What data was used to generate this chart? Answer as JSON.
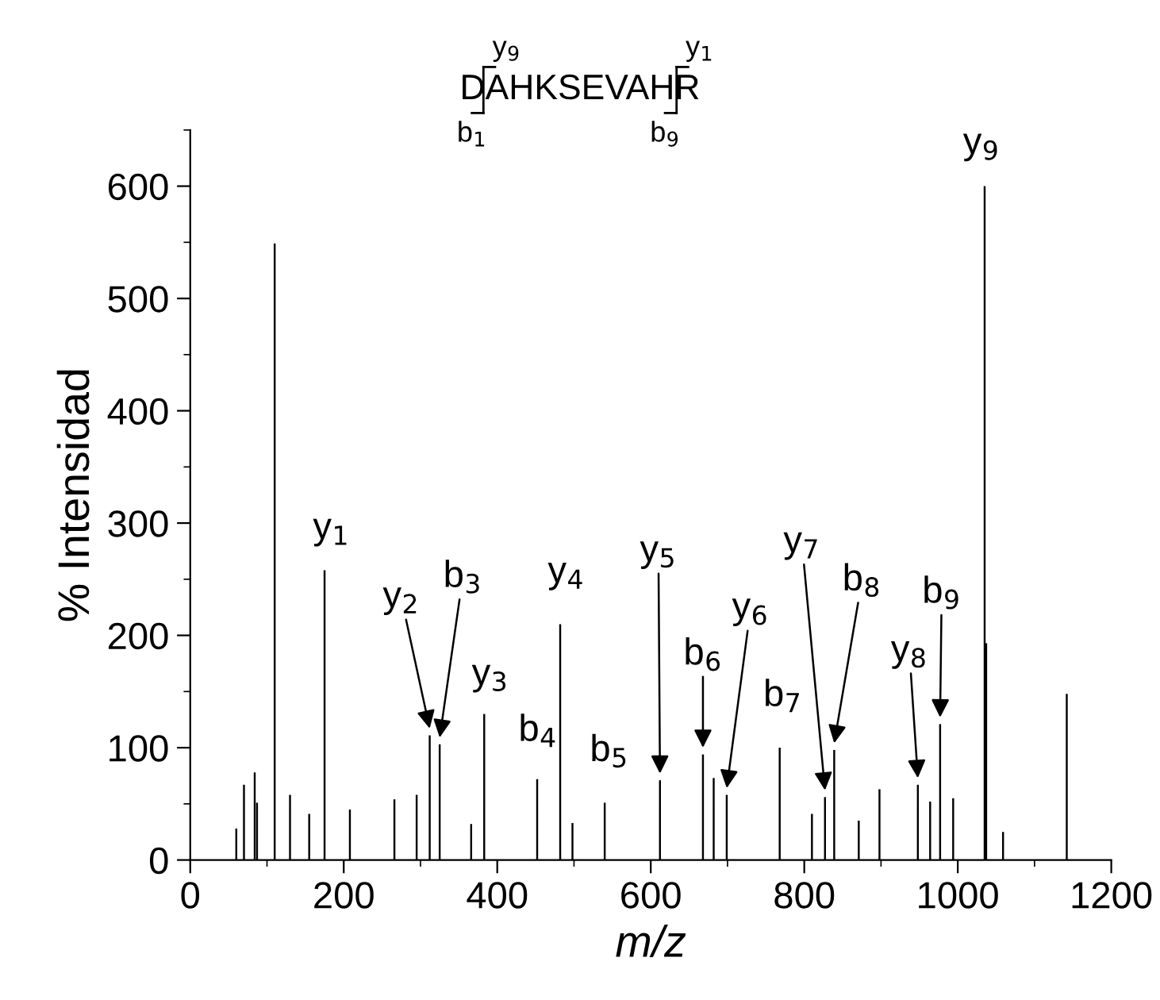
{
  "chart_data": {
    "type": "bar",
    "title": "DAHKSEVAHR",
    "xlabel": "m/z",
    "ylabel": "% Intensidad",
    "x": [
      60,
      70,
      84,
      87,
      110,
      130,
      155,
      175,
      208,
      266,
      295,
      312,
      325,
      366,
      383,
      452,
      482,
      498,
      540,
      612,
      668,
      682,
      699,
      768,
      810,
      827,
      839,
      871,
      898,
      948,
      964,
      977,
      994,
      1035,
      1037,
      1059,
      1142
    ],
    "values": [
      28,
      67,
      78,
      51,
      549,
      58,
      41,
      258,
      45,
      54,
      58,
      111,
      103,
      32,
      130,
      72,
      210,
      33,
      51,
      71,
      94,
      73,
      58,
      100,
      41,
      56,
      98,
      35,
      63,
      67,
      52,
      121,
      55,
      600,
      193,
      25,
      148
    ],
    "color": "#000000",
    "xlim": [
      0,
      1200
    ],
    "ylim": [
      0,
      650
    ],
    "xticks": [
      0,
      200,
      400,
      600,
      800,
      1000,
      1200
    ],
    "yticks": [
      0,
      100,
      200,
      300,
      400,
      500,
      600
    ],
    "grid": false,
    "annotations": [
      {
        "text": "y$_{1}$",
        "x": 175,
        "y": 258
      },
      {
        "text": "y$_{2}$",
        "x": 312,
        "y": 111
      },
      {
        "text": "b$_{3}$",
        "x": 325,
        "y": 103
      },
      {
        "text": "y$_{3}$",
        "x": 383,
        "y": 130
      },
      {
        "text": "b$_{4}$",
        "x": 452,
        "y": 72
      },
      {
        "text": "y$_{4}$",
        "x": 482,
        "y": 210
      },
      {
        "text": "b$_{5}$",
        "x": 540,
        "y": 51
      },
      {
        "text": "y$_{5}$",
        "x": 612,
        "y": 71
      },
      {
        "text": "b$_{6}$",
        "x": 668,
        "y": 94
      },
      {
        "text": "y$_{6}$",
        "x": 699,
        "y": 58
      },
      {
        "text": "b$_{7}$",
        "x": 768,
        "y": 100
      },
      {
        "text": "y$_{7}$",
        "x": 827,
        "y": 56
      },
      {
        "text": "b$_{8}$",
        "x": 839,
        "y": 98
      },
      {
        "text": "y$_{8}$",
        "x": 948,
        "y": 67
      },
      {
        "text": "b$_{9}$",
        "x": 977,
        "y": 121
      },
      {
        "text": "y$_{9}$",
        "x": 1035,
        "y": 600
      },
      "y$_{9}$",
      "y$_{1}$",
      "b$_{1}$",
      "b$_{9}$"
    ]
  }
}
